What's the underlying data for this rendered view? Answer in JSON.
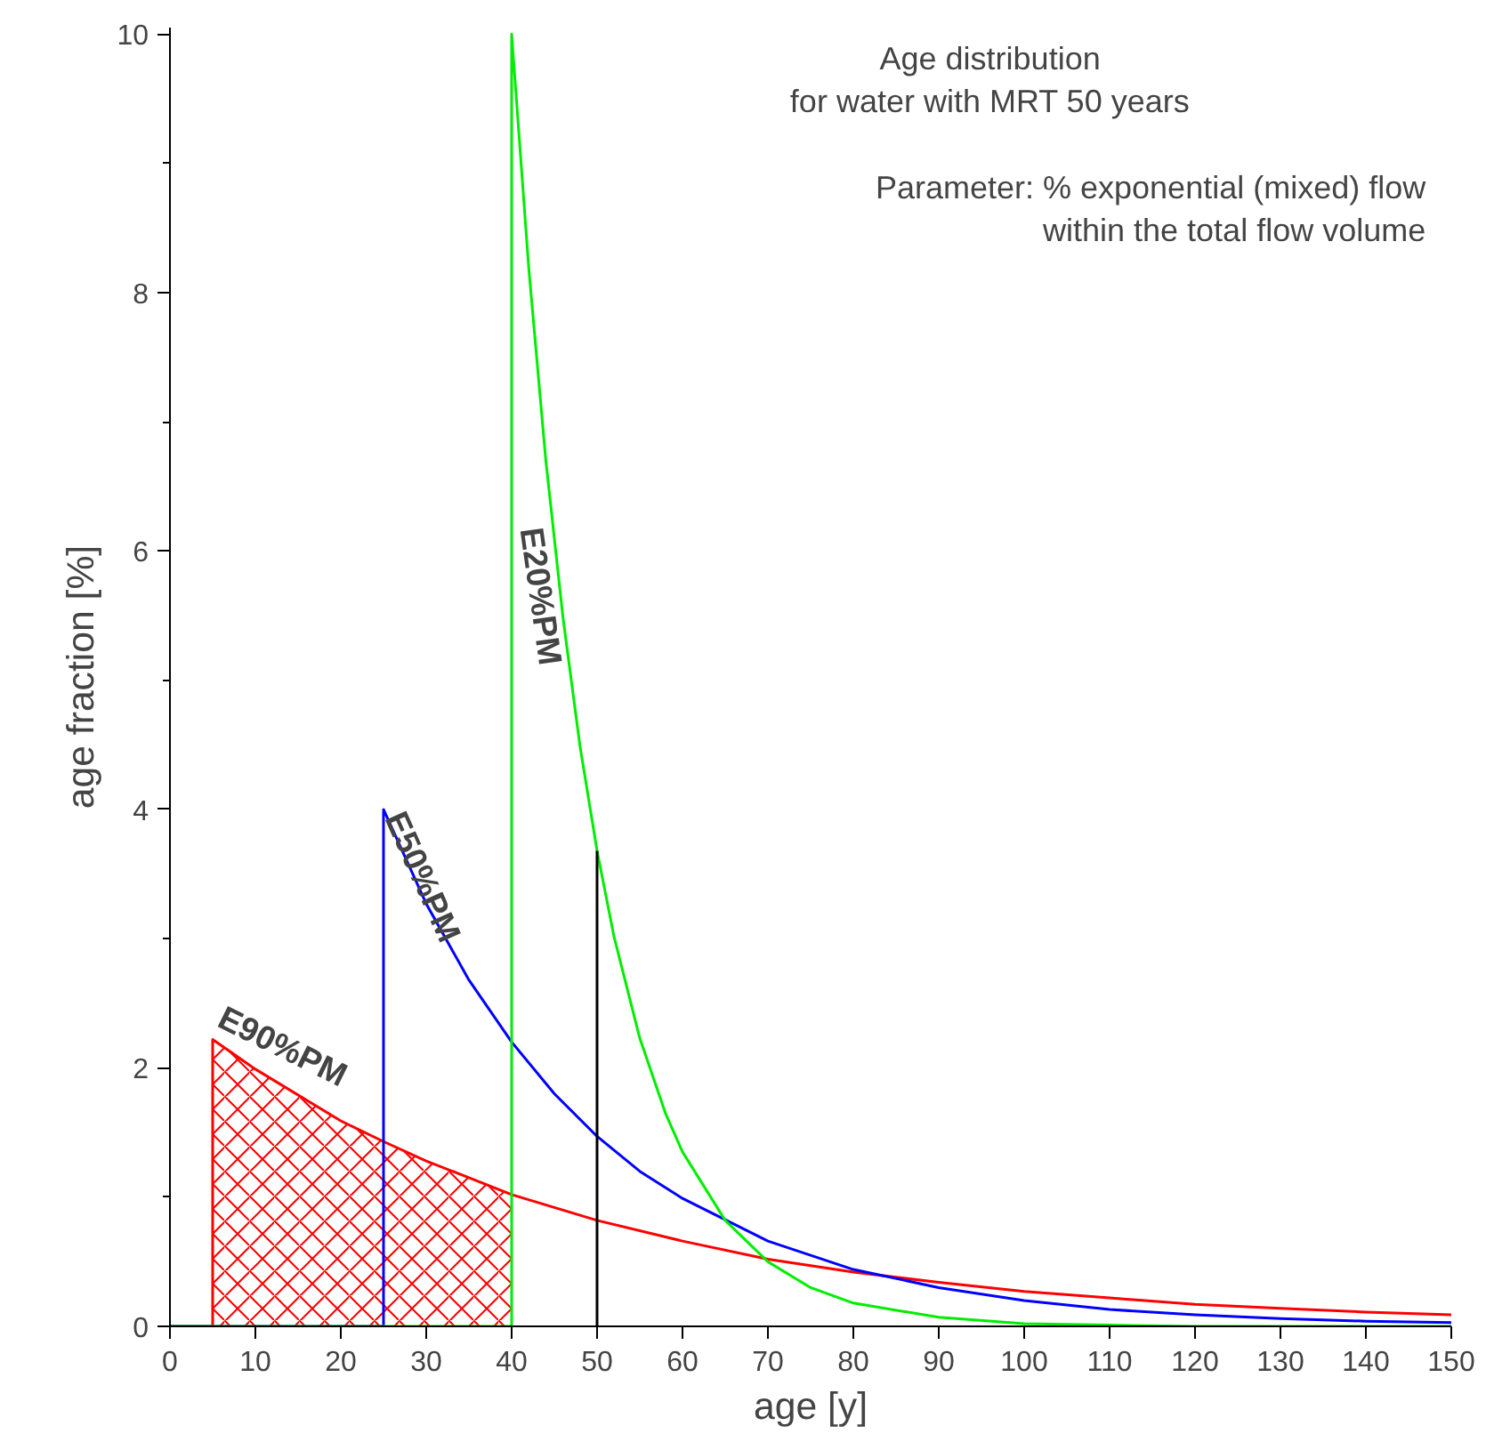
{
  "chart_data": {
    "type": "line",
    "title": "Age distribution\nfor water with MRT 50 years",
    "subtitle": "Parameter: % exponential (mixed) flow\nwithin the total flow volume",
    "xlabel": "age [y]",
    "ylabel": "age fraction [%]",
    "series": [
      {
        "type": "area",
        "color": "#ff0000",
        "x": [
          5,
          10,
          20,
          25,
          30,
          40
        ],
        "values": [
          2.22,
          1.99,
          1.59,
          1.43,
          1.28,
          1.02
        ]
      },
      {
        "color": "#ff0000",
        "x": [
          0,
          5,
          5,
          10,
          20,
          25,
          30,
          40,
          50,
          60,
          70,
          80,
          90,
          100,
          110,
          120,
          130,
          140,
          150
        ],
        "values": [
          0,
          0,
          2.22,
          1.99,
          1.59,
          1.43,
          1.28,
          1.02,
          0.82,
          0.66,
          0.52,
          0.42,
          0.34,
          0.27,
          0.22,
          0.17,
          0.14,
          0.11,
          0.09
        ]
      },
      {
        "color": "#0000ff",
        "x": [
          0,
          25,
          25,
          30,
          35,
          40,
          45,
          50,
          55,
          60,
          70,
          80,
          90,
          100,
          110,
          120,
          130,
          140,
          150
        ],
        "values": [
          0,
          0,
          4.0,
          3.27,
          2.68,
          2.2,
          1.8,
          1.47,
          1.2,
          0.99,
          0.66,
          0.44,
          0.3,
          0.2,
          0.13,
          0.09,
          0.06,
          0.04,
          0.03
        ]
      },
      {
        "color": "#00ee00",
        "x": [
          0,
          40,
          40,
          42,
          44,
          46,
          48,
          50,
          52,
          55,
          58,
          60,
          65,
          70,
          75,
          80,
          90,
          100,
          110,
          120,
          150
        ],
        "values": [
          0,
          0,
          10.0,
          8.19,
          6.7,
          5.49,
          4.49,
          3.68,
          3.01,
          2.23,
          1.65,
          1.35,
          0.82,
          0.5,
          0.3,
          0.18,
          0.07,
          0.02,
          0.01,
          0,
          0
        ]
      },
      {
        "color": "#000000",
        "x": [
          50,
          50
        ],
        "values": [
          0,
          3.68
        ]
      }
    ],
    "annotations": [
      {
        "text": "E90%PM",
        "x": 5,
        "y": 2.25
      },
      {
        "text": "E50%PM",
        "x": 25,
        "y": 4.0
      },
      {
        "text": "E20%PM",
        "x": 44.5,
        "y": 6.2
      }
    ],
    "xlim": [
      0,
      150
    ],
    "ylim": [
      0,
      10.05
    ],
    "xticks": [
      0,
      10,
      20,
      30,
      40,
      50,
      60,
      70,
      80,
      90,
      100,
      110,
      120,
      130,
      140,
      150
    ],
    "yticks": [
      0,
      {
        "value": 1,
        "label": null
      },
      2,
      {
        "value": 3,
        "label": null
      },
      4,
      {
        "value": 5,
        "label": null
      },
      6,
      {
        "value": 7,
        "label": null
      },
      8,
      {
        "value": 9,
        "label": null
      },
      10
    ],
    "grid": false,
    "line_style": "solid"
  }
}
